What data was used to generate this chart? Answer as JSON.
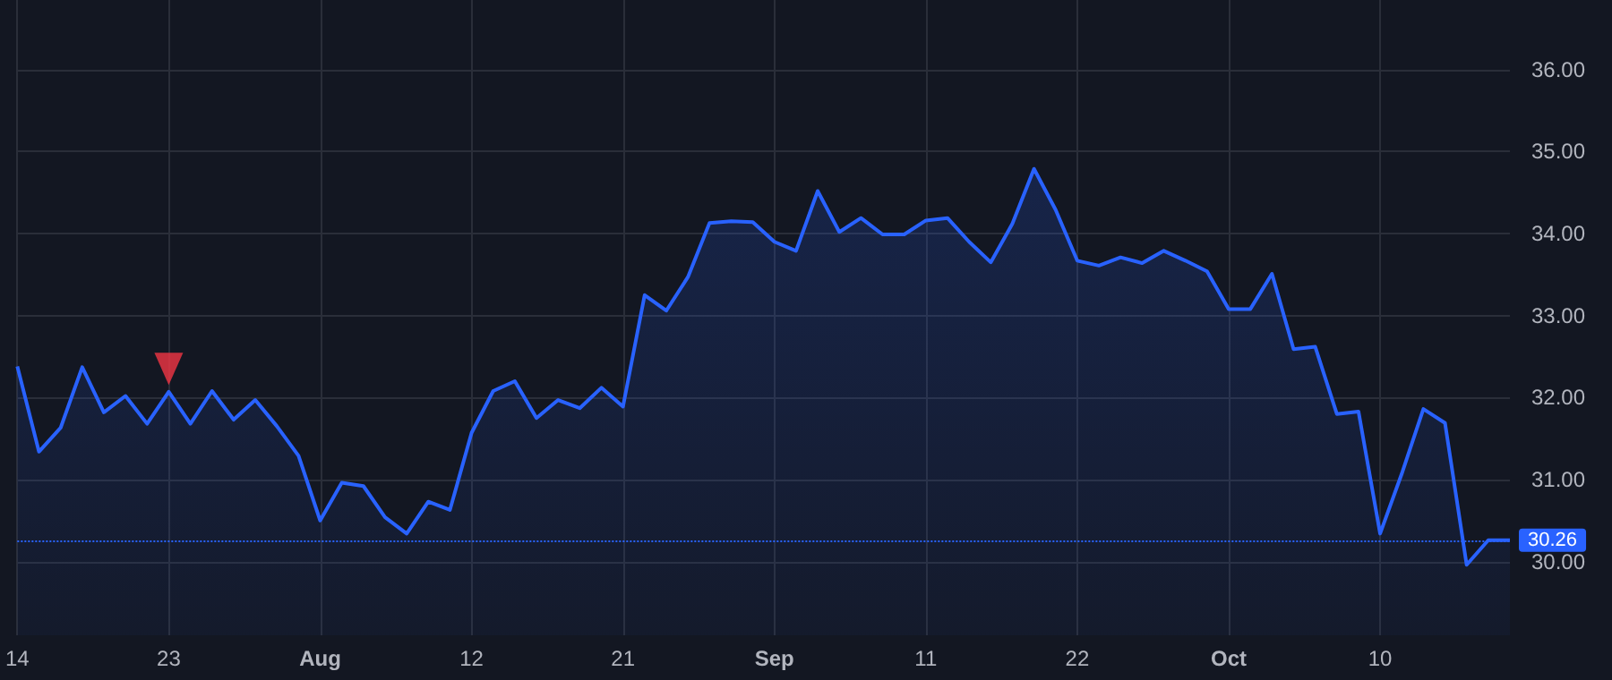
{
  "chart_data": {
    "type": "area",
    "categories": [
      "14",
      null,
      null,
      null,
      null,
      null,
      null,
      "23",
      null,
      null,
      null,
      null,
      null,
      null,
      "Aug",
      null,
      null,
      null,
      null,
      null,
      null,
      "12",
      null,
      null,
      null,
      null,
      null,
      null,
      "21",
      null,
      null,
      null,
      null,
      null,
      null,
      "Sep",
      null,
      null,
      null,
      null,
      null,
      null,
      "11",
      null,
      null,
      null,
      null,
      null,
      null,
      "22",
      null,
      null,
      null,
      null,
      null,
      null,
      "Oct",
      null,
      null,
      null,
      null,
      null,
      null,
      "10",
      null,
      null,
      null,
      null,
      null,
      null
    ],
    "series": [
      {
        "color": "#2962ff",
        "values": [
          32.38,
          31.34,
          31.63,
          32.37,
          31.82,
          32.02,
          31.68,
          32.07,
          31.68,
          32.08,
          31.73,
          31.97,
          31.65,
          31.29,
          30.5,
          30.96,
          30.92,
          30.54,
          30.34,
          30.73,
          30.63,
          31.57,
          32.08,
          32.2,
          31.75,
          31.97,
          31.87,
          32.12,
          31.89,
          33.25,
          33.06,
          33.47,
          34.13,
          34.15,
          34.14,
          33.9,
          33.79,
          34.52,
          34.02,
          34.19,
          33.99,
          33.99,
          34.16,
          34.19,
          33.9,
          33.65,
          34.12,
          34.79,
          34.29,
          33.67,
          33.61,
          33.71,
          33.64,
          33.79,
          33.67,
          33.54,
          33.08,
          33.08,
          33.51,
          32.59,
          32.62,
          31.8,
          31.83,
          30.34,
          31.07,
          31.86,
          31.69,
          29.96,
          30.26,
          30.26
        ]
      },
      {
        "type": "scatter",
        "color": "#f23645",
        "x": [
          "23"
        ],
        "values": [
          32.35
        ],
        "marker": "triangle"
      }
    ],
    "ylim": [
      29.1,
      36.85
    ],
    "yticks": [
      {
        "value": 30,
        "label": "30.00"
      },
      {
        "value": 31,
        "label": "31.00"
      },
      {
        "value": 32,
        "label": "32.00"
      },
      {
        "value": 33,
        "label": "33.00"
      },
      {
        "value": 34,
        "label": "34.00"
      },
      {
        "value": 35,
        "label": "35.00"
      },
      {
        "value": 36,
        "label": "36.00"
      }
    ],
    "ref_lines": [
      {
        "axis": "y",
        "value": 30.26,
        "label": "30.26",
        "color": "#2962ff",
        "line_style": "dotted"
      }
    ],
    "grid": true,
    "marker": "none"
  }
}
